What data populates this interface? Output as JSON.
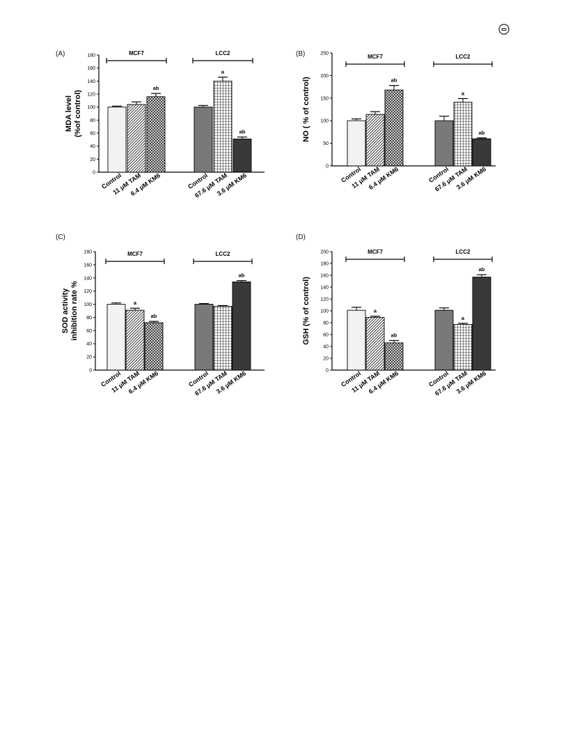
{
  "page": {
    "logo_icon": "journal-logo-icon"
  },
  "panels": [
    {
      "label": "(A)"
    },
    {
      "label": "(B)"
    },
    {
      "label": "(C)"
    },
    {
      "label": "(D)"
    }
  ],
  "chart_data": [
    {
      "type": "bar",
      "panel": "(A)",
      "ylabel_lines": [
        "MDA level",
        "(%of control)"
      ],
      "ylim": [
        0,
        180
      ],
      "ytick_step": 20,
      "categories": [
        "Control",
        "11 μM TAM",
        "6.4 μM KM6",
        "Control",
        "67.6 μM TAM",
        "3.6 μM KM6"
      ],
      "values": [
        100,
        104,
        116,
        100,
        140,
        51
      ],
      "errors": [
        1.5,
        4,
        5,
        2.5,
        6,
        3
      ],
      "annotations": [
        "",
        "",
        "ab",
        "",
        "a",
        "ab"
      ],
      "groups": [
        {
          "label": "MCF7",
          "indices": [
            0,
            1,
            2
          ]
        },
        {
          "label": "LCC2",
          "indices": [
            3,
            4,
            5
          ]
        }
      ],
      "patterns": [
        "dots",
        "diag",
        "cross",
        "hstripe",
        "grid",
        "dark"
      ]
    },
    {
      "type": "bar",
      "panel": "(B)",
      "ylabel_lines": [
        "NO ( % of control)"
      ],
      "ylim": [
        0,
        250
      ],
      "ytick_step": 50,
      "categories": [
        "Control",
        "11 μM TAM",
        "6.4 μM KM6",
        "Control",
        "67.6 μM TAM",
        "3.6 μM KM6"
      ],
      "values": [
        100,
        114,
        168,
        100,
        141,
        60
      ],
      "errors": [
        4,
        6,
        10,
        10,
        8,
        2
      ],
      "annotations": [
        "",
        "",
        "ab",
        "",
        "a",
        "ab"
      ],
      "groups": [
        {
          "label": "MCF7",
          "indices": [
            0,
            1,
            2
          ]
        },
        {
          "label": "LCC2",
          "indices": [
            3,
            4,
            5
          ]
        }
      ],
      "patterns": [
        "dots",
        "diag",
        "cross",
        "hstripe",
        "grid",
        "dark"
      ]
    },
    {
      "type": "bar",
      "panel": "(C)",
      "ylabel_lines": [
        "SOD activity",
        "inhibition rate %"
      ],
      "ylim": [
        0,
        180
      ],
      "ytick_step": 20,
      "categories": [
        "Control",
        "11 μM TAM",
        "6.4 μM KM6",
        "Control",
        "67.6 μM TAM",
        "3.6 μM KM6"
      ],
      "values": [
        100,
        91,
        72,
        100,
        97,
        134
      ],
      "errors": [
        2,
        3,
        2,
        1,
        1,
        2
      ],
      "annotations": [
        "",
        "a",
        "ab",
        "",
        "",
        "ab"
      ],
      "groups": [
        {
          "label": "MCF7",
          "indices": [
            0,
            1,
            2
          ]
        },
        {
          "label": "LCC2",
          "indices": [
            3,
            4,
            5
          ]
        }
      ],
      "patterns": [
        "dots",
        "diag",
        "cross",
        "hstripe",
        "grid",
        "dark"
      ]
    },
    {
      "type": "bar",
      "panel": "(D)",
      "ylabel_lines": [
        "GSH (% of control)"
      ],
      "ylim": [
        0,
        200
      ],
      "ytick_step": 20,
      "categories": [
        "Control",
        "11 μM TAM",
        "6.4 μM KM6",
        "Control",
        "67.6 μM TAM",
        "3.6 μM KM6"
      ],
      "values": [
        101,
        89,
        46,
        101,
        77,
        157
      ],
      "errors": [
        5,
        2,
        4,
        4,
        2,
        4
      ],
      "annotations": [
        "",
        "a",
        "ab",
        "",
        "a",
        "ab"
      ],
      "groups": [
        {
          "label": "MCF7",
          "indices": [
            0,
            1,
            2
          ]
        },
        {
          "label": "LCC2",
          "indices": [
            3,
            4,
            5
          ]
        }
      ],
      "patterns": [
        "dots",
        "diag",
        "cross",
        "hstripe",
        "grid",
        "dark"
      ]
    }
  ]
}
